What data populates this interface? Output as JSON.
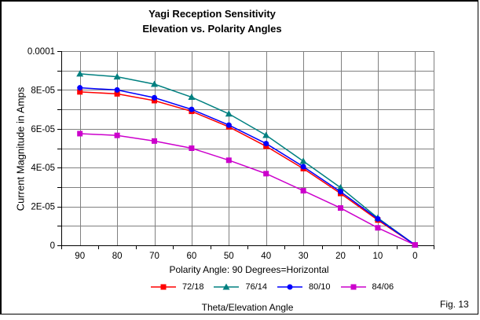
{
  "figure": {
    "caption": "Fig. 13"
  },
  "chart_data": {
    "type": "line",
    "title_lines": [
      "Yagi Reception Sensitivity",
      "Elevation vs. Polarity Angles"
    ],
    "xlabel": "Polarity Angle: 90 Degrees=Horizontal",
    "ylabel": "Current Magnitude in Amps",
    "legend_title": "Theta/Elevation Angle",
    "legend_position": "bottom",
    "grid": true,
    "categories": [
      90,
      80,
      70,
      60,
      50,
      40,
      30,
      20,
      10,
      0
    ],
    "ylim": [
      0,
      0.0001
    ],
    "y_grid_step": 1e-05,
    "y_major_ticks": [
      {
        "value": 0.0001,
        "label": "0.0001"
      },
      {
        "value": 8e-05,
        "label": "8E-05"
      },
      {
        "value": 6e-05,
        "label": "6E-05"
      },
      {
        "value": 4e-05,
        "label": "4E-05"
      },
      {
        "value": 2e-05,
        "label": "2E-05"
      },
      {
        "value": 0,
        "label": "0"
      }
    ],
    "series": [
      {
        "name": "72/18",
        "color": "#FF0000",
        "marker": "square",
        "values": [
          7.9e-05,
          7.8e-05,
          7.45e-05,
          6.9e-05,
          6.1e-05,
          5.1e-05,
          3.95e-05,
          2.67e-05,
          1.3e-05,
          2e-07
        ]
      },
      {
        "name": "76/14",
        "color": "#008080",
        "marker": "triangle",
        "values": [
          8.83e-05,
          8.68e-05,
          8.3e-05,
          7.63e-05,
          6.77e-05,
          5.67e-05,
          4.33e-05,
          2.97e-05,
          1.41e-05,
          2e-07
        ]
      },
      {
        "name": "80/10",
        "color": "#0000FF",
        "marker": "circle",
        "values": [
          8.11e-05,
          8e-05,
          7.6e-05,
          7e-05,
          6.19e-05,
          5.24e-05,
          4.05e-05,
          2.76e-05,
          1.36e-05,
          2e-07
        ]
      },
      {
        "name": "84/06",
        "color": "#CC00CC",
        "marker": "square",
        "values": [
          5.75e-05,
          5.66e-05,
          5.37e-05,
          5e-05,
          4.38e-05,
          3.69e-05,
          2.81e-05,
          1.92e-05,
          9e-06,
          2e-07
        ]
      }
    ],
    "colors": {
      "grid": "#808080",
      "axis": "#000000",
      "background": "#FFFFFF",
      "border": "#000000"
    }
  }
}
